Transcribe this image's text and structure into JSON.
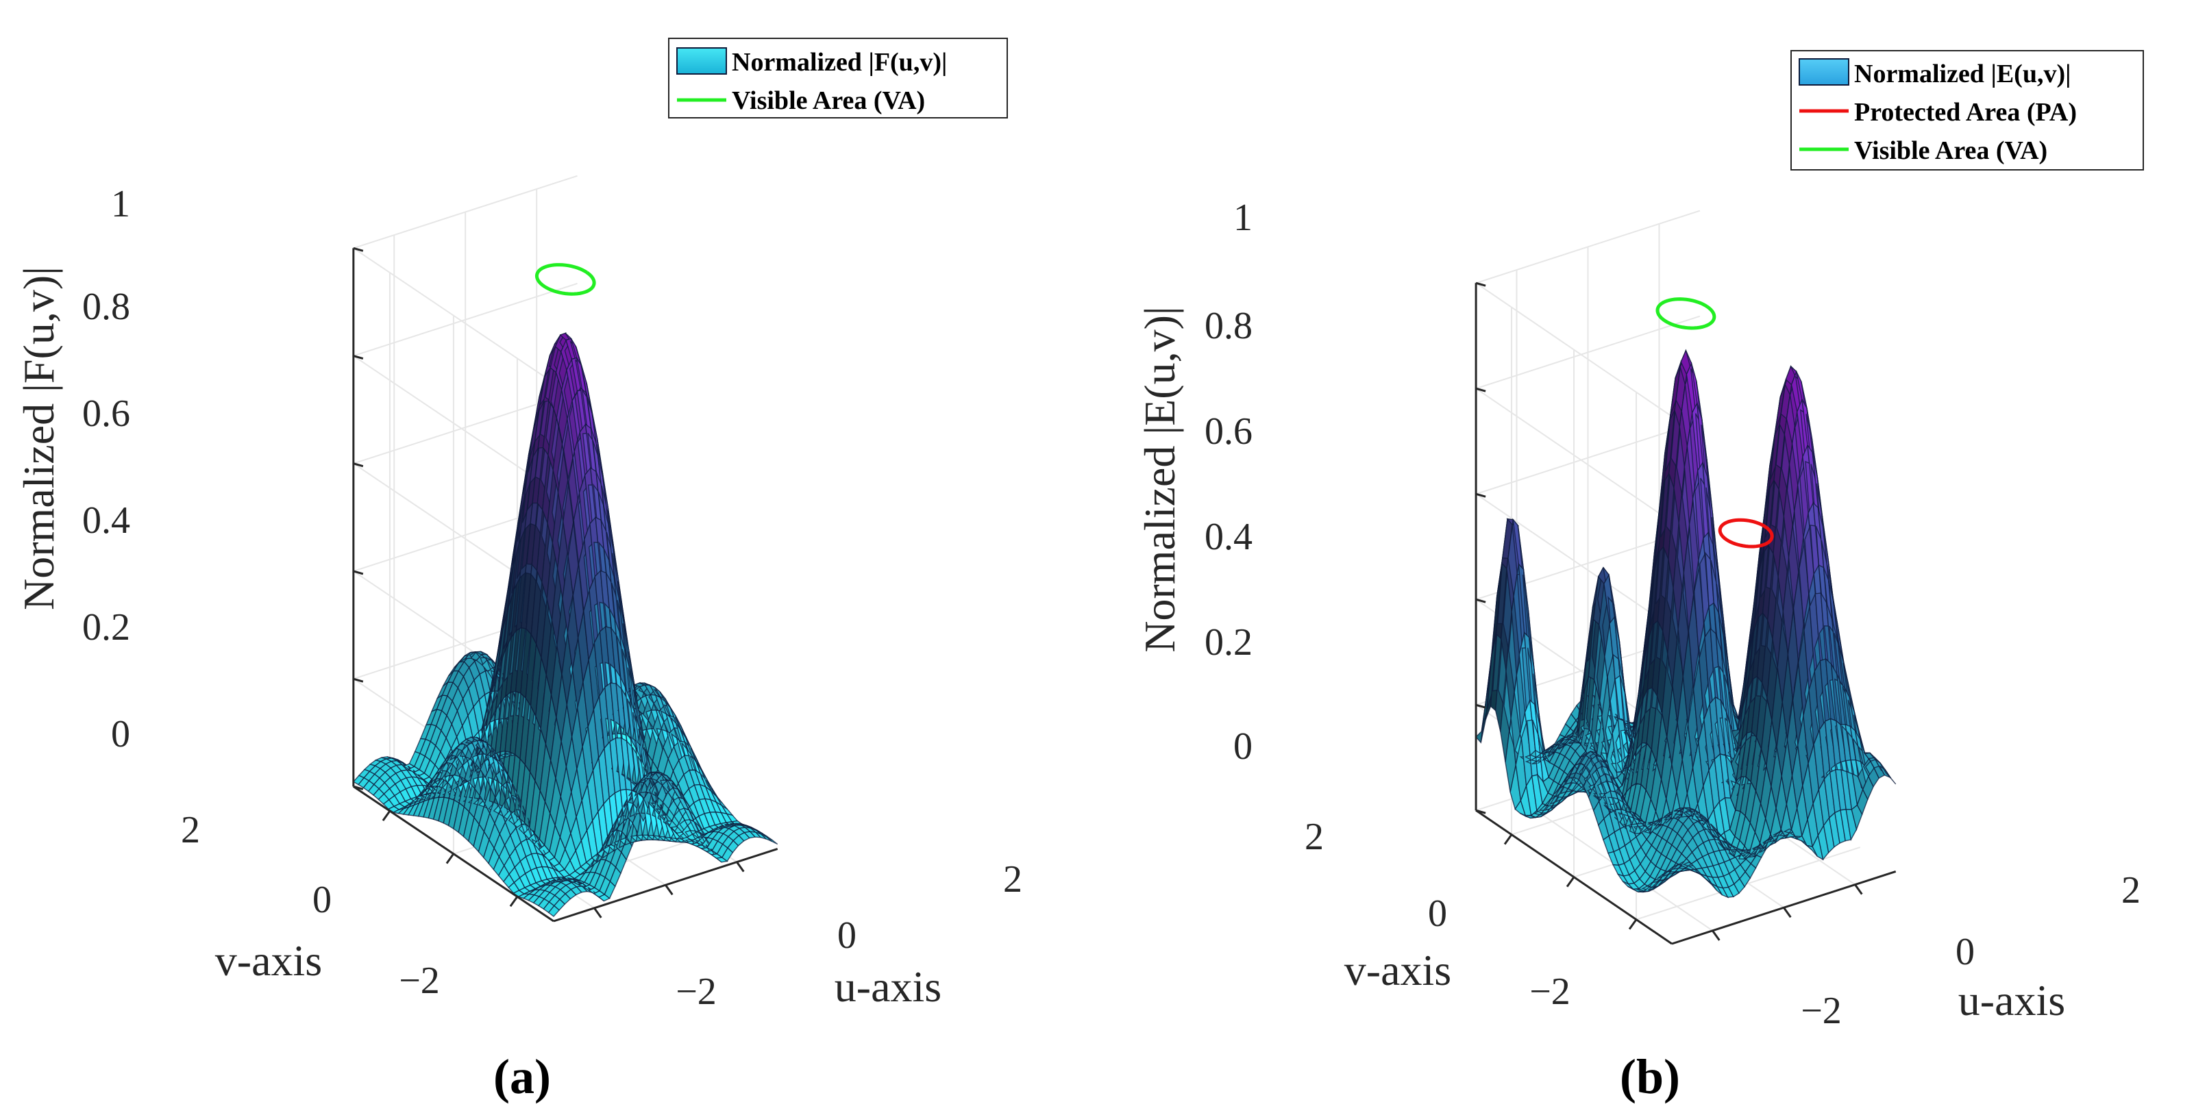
{
  "colors": {
    "surface_low": "#2fe3f0",
    "surface_mid": "#1d4e74",
    "surface_high": "#7a0fa8",
    "visible_area": "#22ee22",
    "protected_area": "#ee1111",
    "legend_patch_a": "#33d6ec",
    "legend_patch_b": "#3cc0f2"
  },
  "chart_data": [
    {
      "type": "surface",
      "caption": "(a)",
      "zlabel": "Normalized |F(u,v)|",
      "xlabel": "u-axis",
      "ylabel": "v-axis",
      "zticks": [
        "0",
        "0.2",
        "0.4",
        "0.6",
        "0.8",
        "1"
      ],
      "zlim": [
        0,
        1
      ],
      "uticks": [
        "−2",
        "0",
        "2"
      ],
      "vticks": [
        "−2",
        "0",
        "2"
      ],
      "ulim": [
        -3.1416,
        3.1416
      ],
      "vlim": [
        -3.1416,
        3.1416
      ],
      "legend": [
        {
          "label": "Normalized |F(u,v)|",
          "kind": "patch"
        },
        {
          "label": "Visible Area (VA)",
          "kind": "line",
          "color": "visible_area"
        }
      ],
      "surface": "sinc-like main lobe, peak 0.9 at (0,0); side lobes up to 0.3",
      "peaks": [
        {
          "u": 0,
          "v": 0,
          "height": 0.9
        }
      ],
      "visible_area": {
        "u": 0,
        "v": 0,
        "radius": 0.6,
        "z": 1.0
      },
      "protected_area": null
    },
    {
      "type": "surface",
      "caption": "(b)",
      "zlabel": "Normalized |E(u,v)|",
      "xlabel": "u-axis",
      "ylabel": "v-axis",
      "zticks": [
        "0",
        "0.2",
        "0.4",
        "0.6",
        "0.8",
        "1"
      ],
      "zlim": [
        0,
        1
      ],
      "uticks": [
        "−2",
        "0",
        "2"
      ],
      "vticks": [
        "−2",
        "0",
        "2"
      ],
      "ulim": [
        -3.1416,
        3.1416
      ],
      "vlim": [
        -3.1416,
        3.1416
      ],
      "legend": [
        {
          "label": "Normalized |E(u,v)|",
          "kind": "patch"
        },
        {
          "label": "Protected Area (PA)",
          "kind": "line",
          "color": "protected_area"
        },
        {
          "label": "Visible Area (VA)",
          "kind": "line",
          "color": "visible_area"
        }
      ],
      "surface": "main lobe peak 0.93 at (0,0) with additional lobes of 0.93, 0.58 and 0.48",
      "peaks": [
        {
          "u": 0,
          "v": 0,
          "height": 0.93
        },
        {
          "u": 1.6,
          "v": -1.6,
          "height": 0.93
        },
        {
          "u": -2.6,
          "v": 2.6,
          "height": 0.58
        },
        {
          "u": -0.9,
          "v": 1.6,
          "height": 0.48
        }
      ],
      "visible_area": {
        "u": 0,
        "v": 0,
        "radius": 0.6,
        "z": 1.0
      },
      "protected_area": {
        "u": 0.9,
        "v": -0.9,
        "radius": 0.55,
        "z": 0.6
      }
    }
  ]
}
